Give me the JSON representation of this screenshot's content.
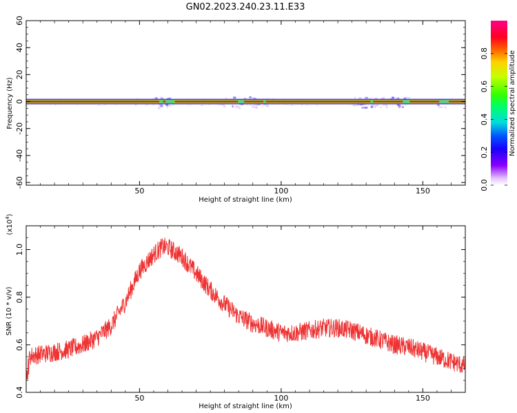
{
  "figure": {
    "title": "GN02.2023.240.23.11.E33"
  },
  "colors": {
    "snr_line": "#ee3333",
    "frame": "#000000",
    "background": "#ffffff"
  },
  "chart_data": [
    {
      "type": "heatmap",
      "panel": "spectrogram",
      "xlabel": "Height of straight line (km)",
      "ylabel": "Frequency (Hz)",
      "xlim": [
        10,
        165
      ],
      "ylim": [
        -62,
        60
      ],
      "xticks": [
        50,
        100,
        150
      ],
      "yticks": [
        -60,
        -40,
        -20,
        0,
        20,
        40,
        60
      ],
      "x_tick_labels": [
        "50",
        "100",
        "150"
      ],
      "y_tick_labels": [
        "-60",
        "-40",
        "-20",
        "0",
        "20",
        "40",
        "60"
      ],
      "band": {
        "center_hz": 0,
        "halfwidth_hz": 1.5,
        "description": "narrow high-amplitude band near 0 Hz across all heights"
      },
      "speckle_regions_km": [
        [
          54,
          62
        ],
        [
          78,
          95
        ],
        [
          125,
          145
        ],
        [
          155,
          158
        ]
      ],
      "colorbar": {
        "label": "Normalized spectral amplitude",
        "range": [
          0,
          1
        ],
        "ticks": [
          0.0,
          0.2,
          0.4,
          0.6,
          0.8
        ],
        "tick_labels": [
          "0.0",
          "0.2",
          "0.4",
          "0.6",
          "0.8"
        ],
        "colormap": "rainbow (white-violet-blue-cyan-green-yellow-red-magenta)"
      },
      "grid": false
    },
    {
      "type": "line",
      "panel": "snr",
      "xlabel": "Height of straight line (km)",
      "ylabel": "SNR (10 * v/v)",
      "scale_label": "(x10",
      "scale_exponent": "4",
      "xlim": [
        10,
        165
      ],
      "ylim": [
        0.4,
        1.1
      ],
      "xticks": [
        50,
        100,
        150
      ],
      "yticks": [
        0.4,
        0.6,
        0.8,
        1.0
      ],
      "x_tick_labels": [
        "50",
        "100",
        "150"
      ],
      "y_tick_labels": [
        "0.4",
        "0.6",
        "0.8",
        "1.0"
      ],
      "series": [
        {
          "color": "#ee3333",
          "x": [
            10,
            15,
            20,
            25,
            30,
            35,
            40,
            45,
            50,
            55,
            58,
            60,
            65,
            70,
            75,
            80,
            85,
            90,
            95,
            100,
            105,
            110,
            115,
            120,
            125,
            130,
            135,
            140,
            145,
            150,
            155,
            160,
            165
          ],
          "values": [
            0.55,
            0.56,
            0.57,
            0.58,
            0.6,
            0.63,
            0.68,
            0.78,
            0.91,
            0.98,
            1.01,
            1.01,
            0.97,
            0.9,
            0.83,
            0.77,
            0.72,
            0.69,
            0.67,
            0.65,
            0.65,
            0.66,
            0.67,
            0.67,
            0.66,
            0.64,
            0.62,
            0.6,
            0.59,
            0.57,
            0.55,
            0.53,
            0.51
          ],
          "noise_amplitude": 0.04
        }
      ],
      "grid": false
    }
  ]
}
